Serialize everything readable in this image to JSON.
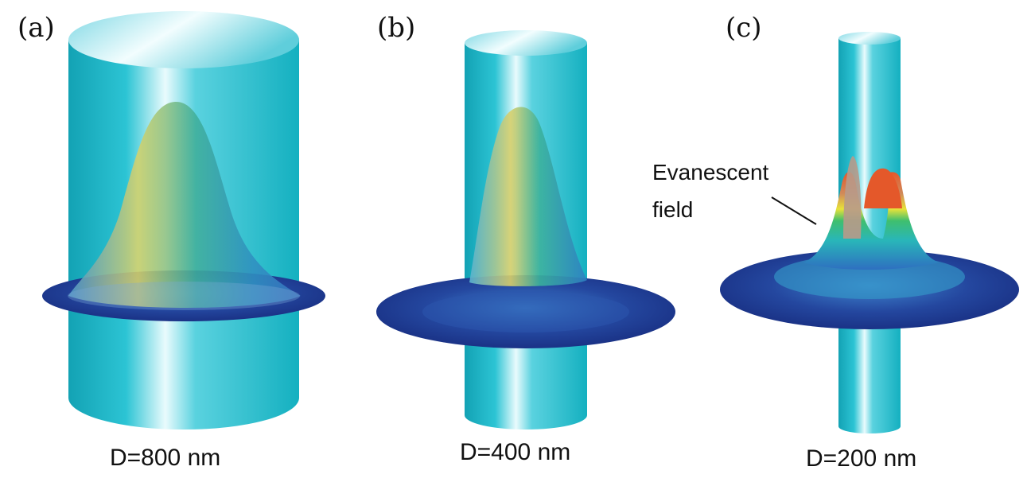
{
  "panels": [
    {
      "label": "(a)",
      "caption": "D=800 nm"
    },
    {
      "label": "(b)",
      "caption": "D=400 nm"
    },
    {
      "label": "(c)",
      "caption": "D=200 nm"
    }
  ],
  "annotation": {
    "line1": "Evanescent",
    "line2": "field"
  },
  "colors": {
    "fiber": "#22c3d2",
    "fiber_dark": "#13a9b8",
    "disc": "#1f3f9e",
    "field_low": "#2f86c8",
    "field_mid": "#2bb7a4",
    "field_high": "#e5e23c",
    "field_peak": "#e4582a"
  }
}
